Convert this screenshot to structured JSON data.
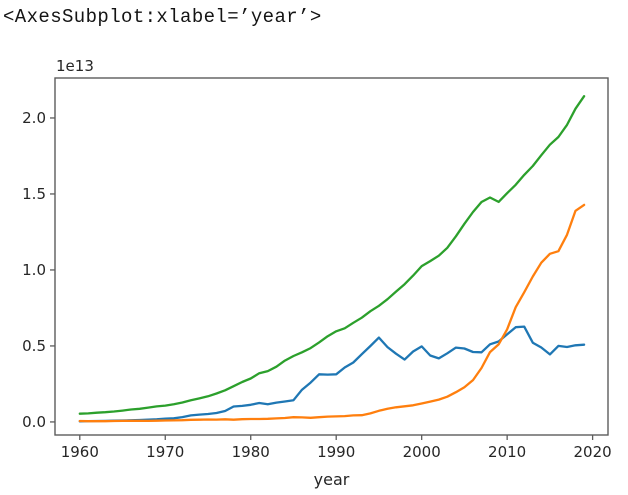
{
  "figure": {
    "repr_text": "<AxesSubplot:xlabel=’year’>"
  },
  "chart_data": {
    "type": "line",
    "title": "",
    "xlabel": "year",
    "ylabel": "",
    "offset_text": "1e13",
    "grid": false,
    "legend_position": "none",
    "axis_color": "#5c5c5c",
    "text_color": "#262626",
    "xlim": [
      1957.1,
      2021.8
    ],
    "ylim_e12": [
      -0.86,
      22.63
    ],
    "x_tick_values": [
      1960,
      1970,
      1980,
      1990,
      2000,
      2010,
      2020
    ],
    "x_tick_labels": [
      "1960",
      "1970",
      "1980",
      "1990",
      "2000",
      "2010",
      "2020"
    ],
    "y_tick_values_e13": [
      0.0,
      0.5,
      1.0,
      1.5,
      2.0
    ],
    "y_tick_labels": [
      "0.0",
      "0.5",
      "1.0",
      "1.5",
      "2.0"
    ],
    "value_unit_note": "series values in 1e12; y axis labeled in 1e13",
    "x": [
      1960,
      1961,
      1962,
      1963,
      1964,
      1965,
      1966,
      1967,
      1968,
      1969,
      1970,
      1971,
      1972,
      1973,
      1974,
      1975,
      1976,
      1977,
      1978,
      1979,
      1980,
      1981,
      1982,
      1983,
      1984,
      1985,
      1986,
      1987,
      1988,
      1989,
      1990,
      1991,
      1992,
      1993,
      1994,
      1995,
      1996,
      1997,
      1998,
      1999,
      2000,
      2001,
      2002,
      2003,
      2004,
      2005,
      2006,
      2007,
      2008,
      2009,
      2010,
      2011,
      2012,
      2013,
      2014,
      2015,
      2016,
      2017,
      2018,
      2019
    ],
    "series": [
      {
        "name": "blue",
        "color": "#1f77b4",
        "values_e12": [
          0.044,
          0.054,
          0.061,
          0.069,
          0.082,
          0.091,
          0.106,
          0.124,
          0.147,
          0.172,
          0.213,
          0.24,
          0.318,
          0.432,
          0.48,
          0.521,
          0.586,
          0.721,
          1.013,
          1.055,
          1.128,
          1.245,
          1.158,
          1.27,
          1.345,
          1.427,
          2.121,
          2.585,
          3.134,
          3.117,
          3.133,
          3.584,
          3.909,
          4.455,
          4.998,
          5.546,
          4.923,
          4.492,
          4.098,
          4.636,
          4.968,
          4.374,
          4.182,
          4.519,
          4.893,
          4.831,
          4.601,
          4.579,
          5.106,
          5.289,
          5.759,
          6.233,
          6.272,
          5.212,
          4.897,
          4.444,
          5.004,
          4.931,
          5.041,
          5.082
        ]
      },
      {
        "name": "orange",
        "color": "#ff7f0e",
        "values_e12": [
          0.06,
          0.05,
          0.047,
          0.051,
          0.06,
          0.07,
          0.077,
          0.072,
          0.071,
          0.08,
          0.093,
          0.1,
          0.113,
          0.139,
          0.144,
          0.163,
          0.154,
          0.175,
          0.149,
          0.178,
          0.191,
          0.196,
          0.205,
          0.231,
          0.26,
          0.31,
          0.301,
          0.273,
          0.312,
          0.348,
          0.361,
          0.383,
          0.427,
          0.445,
          0.564,
          0.734,
          0.864,
          0.962,
          1.029,
          1.094,
          1.211,
          1.339,
          1.471,
          1.66,
          1.955,
          2.286,
          2.752,
          3.55,
          4.594,
          5.102,
          6.087,
          7.552,
          8.532,
          9.57,
          10.476,
          11.062,
          11.233,
          12.31,
          13.895,
          14.28
        ]
      },
      {
        "name": "green",
        "color": "#2ca02c",
        "values_e12": [
          0.543,
          0.563,
          0.605,
          0.639,
          0.686,
          0.744,
          0.815,
          0.862,
          0.943,
          1.02,
          1.073,
          1.165,
          1.279,
          1.425,
          1.545,
          1.685,
          1.873,
          2.082,
          2.352,
          2.627,
          2.857,
          3.207,
          3.344,
          3.634,
          4.038,
          4.339,
          4.58,
          4.855,
          5.236,
          5.642,
          5.963,
          6.158,
          6.52,
          6.859,
          7.287,
          7.64,
          8.073,
          8.578,
          9.063,
          9.631,
          10.252,
          10.582,
          10.936,
          11.458,
          12.217,
          13.039,
          13.816,
          14.474,
          14.77,
          14.478,
          15.049,
          15.6,
          16.254,
          16.843,
          17.551,
          18.238,
          18.745,
          19.543,
          20.612,
          21.433
        ]
      }
    ]
  }
}
